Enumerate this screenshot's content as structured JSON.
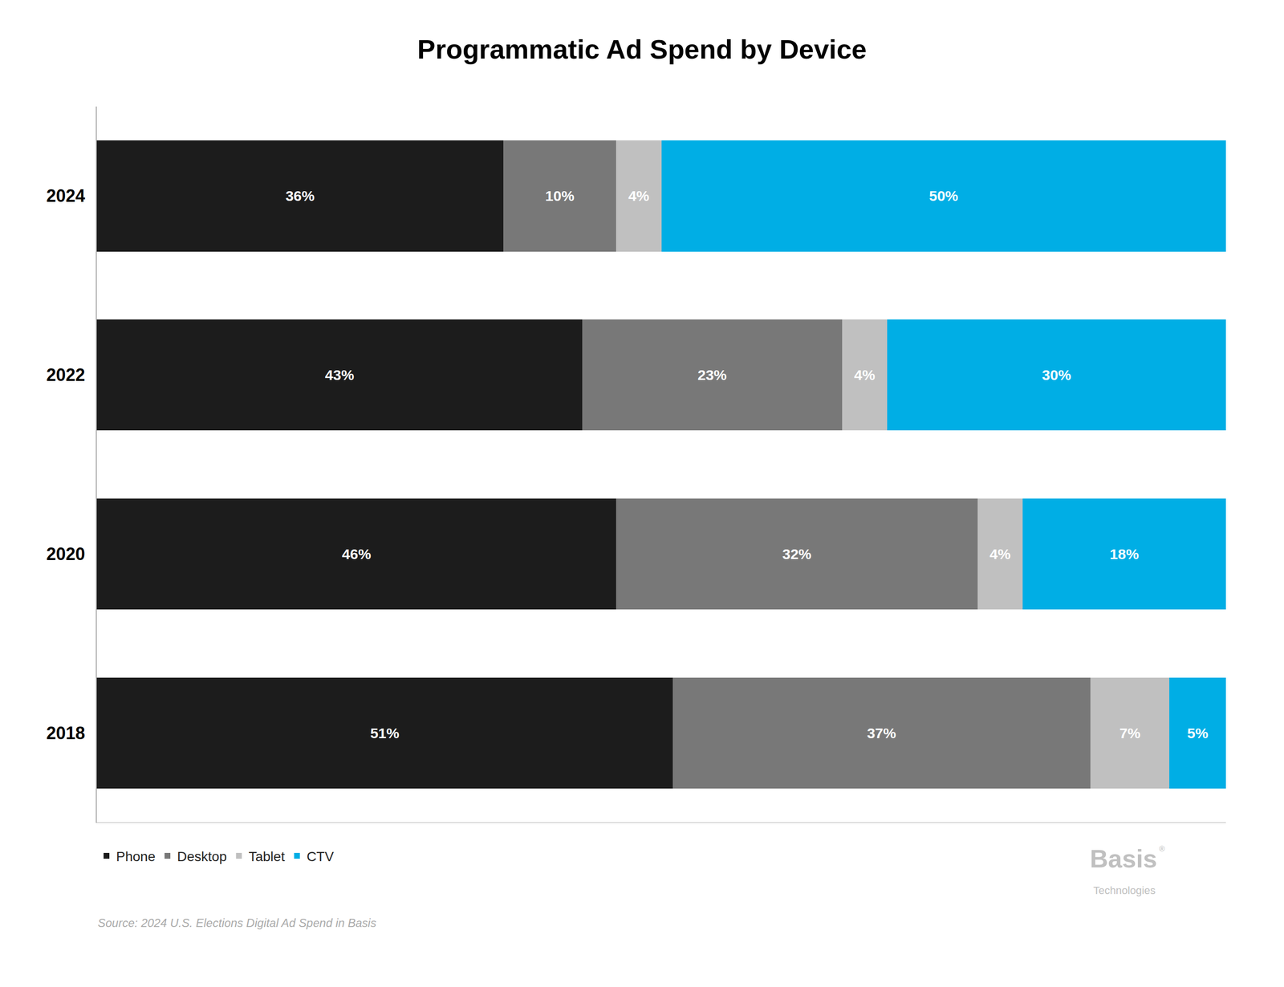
{
  "chart_data": {
    "type": "bar",
    "orientation": "horizontal",
    "stacked": true,
    "title": "Programmatic Ad Spend by Device",
    "categories": [
      "2024",
      "2022",
      "2020",
      "2018"
    ],
    "series": [
      {
        "name": "Phone",
        "color": "#1c1c1c",
        "values": [
          36,
          43,
          46,
          51
        ],
        "value_labels": [
          "36%",
          "43%",
          "46%",
          "51%"
        ]
      },
      {
        "name": "Desktop",
        "color": "#787878",
        "values": [
          10,
          23,
          32,
          37
        ],
        "value_labels": [
          "10%",
          "23%",
          "32%",
          "37%"
        ]
      },
      {
        "name": "Tablet",
        "color": "#c0c0c0",
        "values": [
          4,
          4,
          4,
          7
        ],
        "value_labels": [
          "4%",
          "4%",
          "4%",
          "7%"
        ]
      },
      {
        "name": "CTV",
        "color": "#00aee5",
        "values": [
          50,
          30,
          18,
          5
        ],
        "value_labels": [
          "50%",
          "30%",
          "18%",
          "5%"
        ]
      }
    ],
    "xlim": [
      0,
      100
    ],
    "data_labels": true,
    "tick_labels": "y",
    "grid": false,
    "legend": "lower left",
    "annotations": [
      "Source: 2024 U.S. Elections Digital Ad Spend in Basis",
      "Basis",
      "®",
      "Technologies"
    ]
  }
}
